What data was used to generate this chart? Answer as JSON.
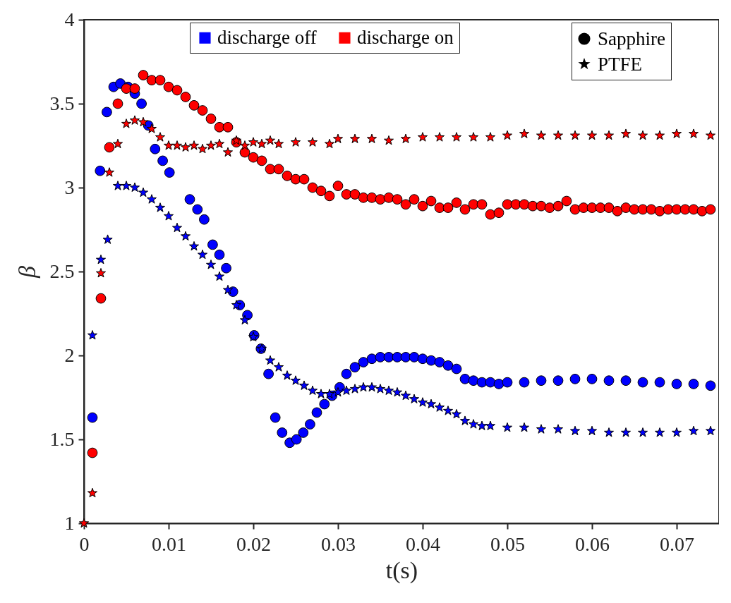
{
  "chart_data": {
    "type": "scatter",
    "xlabel": "t(s)",
    "ylabel": "β",
    "xlim": [
      0,
      0.075
    ],
    "ylim": [
      1,
      4
    ],
    "xticks": [
      0,
      0.01,
      0.02,
      0.03,
      0.04,
      0.05,
      0.06,
      0.07
    ],
    "yticks": [
      1,
      1.5,
      2,
      2.5,
      3,
      3.5,
      4
    ],
    "grid": false,
    "legend": "top",
    "annotations": [
      "Sapphire",
      "PTFE"
    ],
    "series": [
      {
        "name": "discharge off",
        "color": "#0000ff",
        "marker": "circle",
        "x": [
          0.001,
          0.0019,
          0.0027,
          0.0035,
          0.0043,
          0.0052,
          0.006,
          0.0068,
          0.0076,
          0.0084,
          0.0093,
          0.0101,
          0.0125,
          0.0134,
          0.0142,
          0.0152,
          0.016,
          0.0168,
          0.0176,
          0.0184,
          0.0193,
          0.0201,
          0.0209,
          0.0218,
          0.0226,
          0.0234,
          0.0243,
          0.0251,
          0.0259,
          0.0267,
          0.0275,
          0.0284,
          0.0293,
          0.0302,
          0.031,
          0.032,
          0.033,
          0.034,
          0.035,
          0.036,
          0.037,
          0.038,
          0.039,
          0.04,
          0.041,
          0.042,
          0.043,
          0.044,
          0.045,
          0.046,
          0.047,
          0.048,
          0.049,
          0.05,
          0.052,
          0.054,
          0.056,
          0.058,
          0.06,
          0.062,
          0.064,
          0.066,
          0.068,
          0.07,
          0.072,
          0.074
        ],
        "values": [
          1.63,
          3.1,
          3.45,
          3.6,
          3.62,
          3.6,
          3.56,
          3.5,
          3.37,
          3.23,
          3.16,
          3.09,
          2.93,
          2.87,
          2.81,
          2.66,
          2.6,
          2.52,
          2.38,
          2.3,
          2.24,
          2.12,
          2.04,
          1.89,
          1.63,
          1.54,
          1.48,
          1.5,
          1.54,
          1.59,
          1.66,
          1.71,
          1.76,
          1.81,
          1.89,
          1.93,
          1.96,
          1.98,
          1.99,
          1.99,
          1.99,
          1.99,
          1.99,
          1.98,
          1.97,
          1.96,
          1.94,
          1.92,
          1.86,
          1.85,
          1.84,
          1.84,
          1.83,
          1.84,
          1.84,
          1.85,
          1.85,
          1.86,
          1.86,
          1.85,
          1.85,
          1.84,
          1.84,
          1.83,
          1.83,
          1.82
        ]
      },
      {
        "color": "#0000ff",
        "marker": "star",
        "x": [
          0.001,
          0.002,
          0.0028,
          0.004,
          0.005,
          0.006,
          0.007,
          0.008,
          0.009,
          0.01,
          0.011,
          0.012,
          0.013,
          0.014,
          0.015,
          0.016,
          0.017,
          0.018,
          0.019,
          0.02,
          0.021,
          0.022,
          0.023,
          0.024,
          0.025,
          0.026,
          0.027,
          0.028,
          0.029,
          0.03,
          0.031,
          0.032,
          0.033,
          0.034,
          0.035,
          0.036,
          0.037,
          0.038,
          0.039,
          0.04,
          0.041,
          0.042,
          0.043,
          0.044,
          0.045,
          0.046,
          0.047,
          0.048,
          0.05,
          0.052,
          0.054,
          0.056,
          0.058,
          0.06,
          0.062,
          0.064,
          0.066,
          0.068,
          0.07,
          0.072,
          0.074
        ],
        "values": [
          2.12,
          2.57,
          2.69,
          3.01,
          3.01,
          3.0,
          2.97,
          2.93,
          2.88,
          2.83,
          2.76,
          2.71,
          2.65,
          2.6,
          2.54,
          2.47,
          2.39,
          2.3,
          2.21,
          2.11,
          2.04,
          1.97,
          1.93,
          1.88,
          1.85,
          1.82,
          1.79,
          1.77,
          1.77,
          1.78,
          1.79,
          1.8,
          1.81,
          1.81,
          1.8,
          1.79,
          1.78,
          1.76,
          1.74,
          1.72,
          1.71,
          1.69,
          1.67,
          1.65,
          1.61,
          1.59,
          1.58,
          1.58,
          1.57,
          1.57,
          1.56,
          1.56,
          1.55,
          1.55,
          1.54,
          1.54,
          1.54,
          1.54,
          1.54,
          1.55,
          1.55
        ]
      },
      {
        "name": "discharge on",
        "color": "#ff0000",
        "marker": "circle",
        "x": [
          0.001,
          0.002,
          0.003,
          0.004,
          0.005,
          0.006,
          0.007,
          0.008,
          0.009,
          0.01,
          0.011,
          0.012,
          0.013,
          0.014,
          0.015,
          0.016,
          0.017,
          0.018,
          0.019,
          0.02,
          0.021,
          0.022,
          0.023,
          0.024,
          0.025,
          0.026,
          0.027,
          0.028,
          0.029,
          0.03,
          0.031,
          0.032,
          0.033,
          0.034,
          0.035,
          0.036,
          0.037,
          0.038,
          0.039,
          0.04,
          0.041,
          0.042,
          0.043,
          0.044,
          0.045,
          0.046,
          0.047,
          0.048,
          0.049,
          0.05,
          0.051,
          0.052,
          0.053,
          0.054,
          0.055,
          0.056,
          0.057,
          0.058,
          0.059,
          0.06,
          0.061,
          0.062,
          0.063,
          0.064,
          0.065,
          0.066,
          0.067,
          0.068,
          0.069,
          0.07,
          0.071,
          0.072,
          0.073,
          0.074
        ],
        "values": [
          1.42,
          2.34,
          3.24,
          3.5,
          3.59,
          3.59,
          3.67,
          3.64,
          3.64,
          3.6,
          3.58,
          3.54,
          3.49,
          3.46,
          3.41,
          3.36,
          3.36,
          3.27,
          3.21,
          3.18,
          3.16,
          3.11,
          3.11,
          3.07,
          3.05,
          3.05,
          3.0,
          2.98,
          2.95,
          3.01,
          2.96,
          2.96,
          2.94,
          2.94,
          2.93,
          2.94,
          2.93,
          2.9,
          2.93,
          2.89,
          2.92,
          2.88,
          2.88,
          2.91,
          2.87,
          2.9,
          2.9,
          2.84,
          2.85,
          2.9,
          2.9,
          2.9,
          2.89,
          2.89,
          2.88,
          2.89,
          2.92,
          2.87,
          2.88,
          2.88,
          2.88,
          2.88,
          2.86,
          2.88,
          2.87,
          2.87,
          2.87,
          2.86,
          2.87,
          2.87,
          2.87,
          2.87,
          2.86,
          2.87
        ]
      },
      {
        "color": "#ff0000",
        "marker": "star",
        "x": [
          0,
          0.001,
          0.002,
          0.003,
          0.004,
          0.005,
          0.006,
          0.007,
          0.008,
          0.009,
          0.01,
          0.011,
          0.012,
          0.013,
          0.014,
          0.015,
          0.016,
          0.017,
          0.018,
          0.019,
          0.02,
          0.021,
          0.022,
          0.023,
          0.025,
          0.027,
          0.029,
          0.03,
          0.032,
          0.034,
          0.036,
          0.038,
          0.04,
          0.042,
          0.044,
          0.046,
          0.048,
          0.05,
          0.052,
          0.054,
          0.056,
          0.058,
          0.06,
          0.062,
          0.064,
          0.066,
          0.068,
          0.07,
          0.072,
          0.074
        ],
        "values": [
          1.0,
          1.18,
          2.49,
          3.09,
          3.26,
          3.38,
          3.4,
          3.39,
          3.35,
          3.3,
          3.25,
          3.25,
          3.24,
          3.25,
          3.23,
          3.25,
          3.26,
          3.21,
          3.28,
          3.25,
          3.27,
          3.26,
          3.28,
          3.26,
          3.27,
          3.27,
          3.26,
          3.29,
          3.29,
          3.29,
          3.28,
          3.29,
          3.3,
          3.3,
          3.3,
          3.3,
          3.3,
          3.31,
          3.32,
          3.31,
          3.31,
          3.31,
          3.31,
          3.31,
          3.32,
          3.31,
          3.31,
          3.32,
          3.32,
          3.31
        ]
      }
    ]
  }
}
